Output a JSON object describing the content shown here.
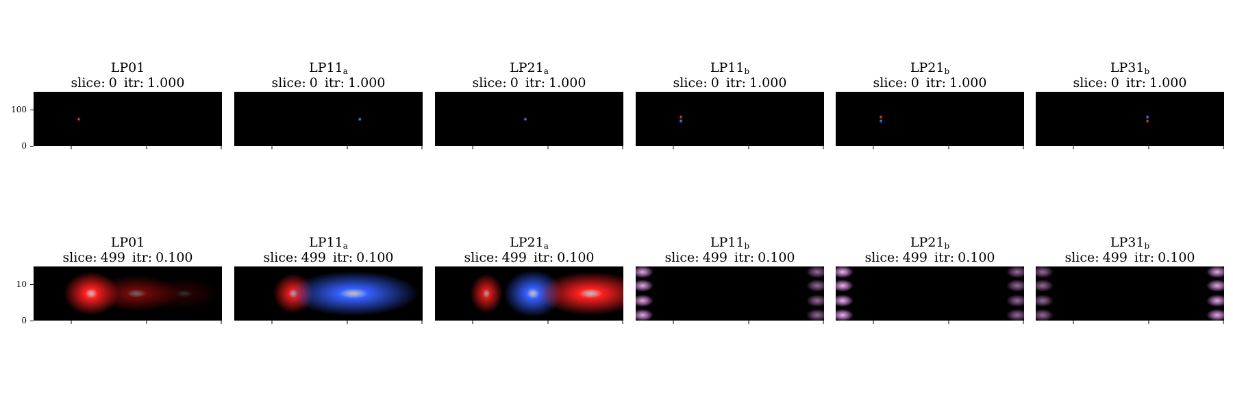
{
  "chart_data": [
    {
      "type": "heatmap",
      "row": 0,
      "mode": "LP01",
      "mode_sub": "",
      "slice_label": "slice:",
      "slice": "0",
      "itr_label": "itr:",
      "itr": "1.000",
      "ylim": [
        0,
        150
      ],
      "yticks": [
        0,
        100
      ],
      "xlim": [
        0,
        150
      ],
      "xticks": [
        30,
        90,
        150
      ],
      "features": [
        {
          "color": "#ff3030",
          "x": 36,
          "y": 74,
          "rx": 1.5,
          "ry": 5,
          "intensity": 1.0
        }
      ]
    },
    {
      "type": "heatmap",
      "row": 0,
      "mode": "LP11",
      "mode_sub": "a",
      "slice_label": "slice:",
      "slice": "0",
      "itr_label": "itr:",
      "itr": "1.000",
      "ylim": [
        0,
        150
      ],
      "yticks": [],
      "xlim": [
        0,
        150
      ],
      "xticks": [
        30,
        90,
        150
      ],
      "features": [
        {
          "color": "#4a7dff",
          "x": 100,
          "y": 74,
          "rx": 1.5,
          "ry": 5,
          "intensity": 1.0
        }
      ]
    },
    {
      "type": "heatmap",
      "row": 0,
      "mode": "LP21",
      "mode_sub": "a",
      "slice_label": "slice:",
      "slice": "0",
      "itr_label": "itr:",
      "itr": "1.000",
      "ylim": [
        0,
        150
      ],
      "yticks": [],
      "xlim": [
        0,
        150
      ],
      "xticks": [
        30,
        90,
        150
      ],
      "features": [
        {
          "color": "#4a7dff",
          "x": 72,
          "y": 74,
          "rx": 1.5,
          "ry": 5,
          "intensity": 1.0
        }
      ]
    },
    {
      "type": "heatmap",
      "row": 0,
      "mode": "LP11",
      "mode_sub": "b",
      "slice_label": "slice:",
      "slice": "0",
      "itr_label": "itr:",
      "itr": "1.000",
      "ylim": [
        0,
        150
      ],
      "yticks": [],
      "xlim": [
        0,
        150
      ],
      "xticks": [
        30,
        90,
        150
      ],
      "features": [
        {
          "color": "#ff3030",
          "x": 36,
          "y": 80,
          "rx": 1.5,
          "ry": 4,
          "intensity": 1.0
        },
        {
          "color": "#4a7dff",
          "x": 36,
          "y": 69,
          "rx": 1.5,
          "ry": 4,
          "intensity": 1.0
        }
      ]
    },
    {
      "type": "heatmap",
      "row": 0,
      "mode": "LP21",
      "mode_sub": "b",
      "slice_label": "slice:",
      "slice": "0",
      "itr_label": "itr:",
      "itr": "1.000",
      "ylim": [
        0,
        150
      ],
      "yticks": [],
      "xlim": [
        0,
        150
      ],
      "xticks": [
        30,
        90,
        150
      ],
      "features": [
        {
          "color": "#ff3030",
          "x": 36,
          "y": 80,
          "rx": 1.5,
          "ry": 4,
          "intensity": 1.0
        },
        {
          "color": "#4a7dff",
          "x": 36,
          "y": 69,
          "rx": 1.5,
          "ry": 4,
          "intensity": 1.0
        }
      ]
    },
    {
      "type": "heatmap",
      "row": 0,
      "mode": "LP31",
      "mode_sub": "b",
      "slice_label": "slice:",
      "slice": "0",
      "itr_label": "itr:",
      "itr": "1.000",
      "ylim": [
        0,
        150
      ],
      "yticks": [],
      "xlim": [
        0,
        150
      ],
      "xticks": [
        30,
        90,
        150
      ],
      "features": [
        {
          "color": "#4a7dff",
          "x": 89,
          "y": 80,
          "rx": 1.5,
          "ry": 4,
          "intensity": 1.0
        },
        {
          "color": "#ff3030",
          "x": 89,
          "y": 69,
          "rx": 1.5,
          "ry": 4,
          "intensity": 1.0
        }
      ]
    },
    {
      "type": "heatmap",
      "row": 1,
      "mode": "LP01",
      "mode_sub": "",
      "slice_label": "slice:",
      "slice": "499",
      "itr_label": "itr:",
      "itr": "0.100",
      "ylim": [
        0,
        15
      ],
      "yticks": [
        0,
        10
      ],
      "xlim": [
        0,
        15
      ],
      "xticks": [
        3,
        9,
        15
      ],
      "features": [
        {
          "color": "#ff2020",
          "x": 4.6,
          "y": 7.5,
          "rx": 2.2,
          "ry": 6,
          "intensity": 1.0
        },
        {
          "color": "#c81010",
          "x": 8.2,
          "y": 7.5,
          "rx": 3.5,
          "ry": 5,
          "intensity": 0.55
        },
        {
          "color": "#8a0808",
          "x": 12.0,
          "y": 7.5,
          "rx": 3.0,
          "ry": 4.5,
          "intensity": 0.25
        }
      ]
    },
    {
      "type": "heatmap",
      "row": 1,
      "mode": "LP11",
      "mode_sub": "a",
      "slice_label": "slice:",
      "slice": "499",
      "itr_label": "itr:",
      "itr": "0.100",
      "ylim": [
        0,
        15
      ],
      "yticks": [],
      "xlim": [
        0,
        15
      ],
      "xticks": [
        3,
        9,
        15
      ],
      "features": [
        {
          "color": "#ff2020",
          "x": 4.7,
          "y": 7.5,
          "rx": 1.6,
          "ry": 5.5,
          "intensity": 0.9
        },
        {
          "color": "#3560ff",
          "x": 9.5,
          "y": 7.5,
          "rx": 5.2,
          "ry": 6.2,
          "intensity": 1.0
        }
      ]
    },
    {
      "type": "heatmap",
      "row": 1,
      "mode": "LP21",
      "mode_sub": "a",
      "slice_label": "slice:",
      "slice": "499",
      "itr_label": "itr:",
      "itr": "0.100",
      "ylim": [
        0,
        15
      ],
      "yticks": [],
      "xlim": [
        0,
        15
      ],
      "xticks": [
        3,
        9,
        15
      ],
      "features": [
        {
          "color": "#ff2020",
          "x": 4.1,
          "y": 7.5,
          "rx": 1.3,
          "ry": 5.5,
          "intensity": 0.85
        },
        {
          "color": "#3560ff",
          "x": 7.8,
          "y": 7.5,
          "rx": 2.3,
          "ry": 6.5,
          "intensity": 1.0
        },
        {
          "color": "#ff2020",
          "x": 12.4,
          "y": 7.5,
          "rx": 4.2,
          "ry": 6.0,
          "intensity": 1.0
        }
      ]
    },
    {
      "type": "heatmap",
      "row": 1,
      "mode": "LP11",
      "mode_sub": "b",
      "slice_label": "slice:",
      "slice": "499",
      "itr_label": "itr:",
      "itr": "0.100",
      "ylim": [
        0,
        15
      ],
      "yticks": [],
      "xlim": [
        0,
        15
      ],
      "xticks": [
        3,
        9,
        15
      ],
      "edge_pattern": {
        "color": "#d98ae0",
        "left_strength": 0.85,
        "right_strength": 0.55
      }
    },
    {
      "type": "heatmap",
      "row": 1,
      "mode": "LP21",
      "mode_sub": "b",
      "slice_label": "slice:",
      "slice": "499",
      "itr_label": "itr:",
      "itr": "0.100",
      "ylim": [
        0,
        15
      ],
      "yticks": [],
      "xlim": [
        0,
        15
      ],
      "xticks": [
        3,
        9,
        15
      ],
      "edge_pattern": {
        "color": "#d98ae0",
        "left_strength": 0.9,
        "right_strength": 0.55
      }
    },
    {
      "type": "heatmap",
      "row": 1,
      "mode": "LP31",
      "mode_sub": "b",
      "slice_label": "slice:",
      "slice": "499",
      "itr_label": "itr:",
      "itr": "0.100",
      "ylim": [
        0,
        15
      ],
      "yticks": [],
      "xlim": [
        0,
        15
      ],
      "xticks": [
        3,
        9,
        15
      ],
      "edge_pattern": {
        "color": "#d98ae0",
        "left_strength": 0.55,
        "right_strength": 0.85
      }
    }
  ]
}
